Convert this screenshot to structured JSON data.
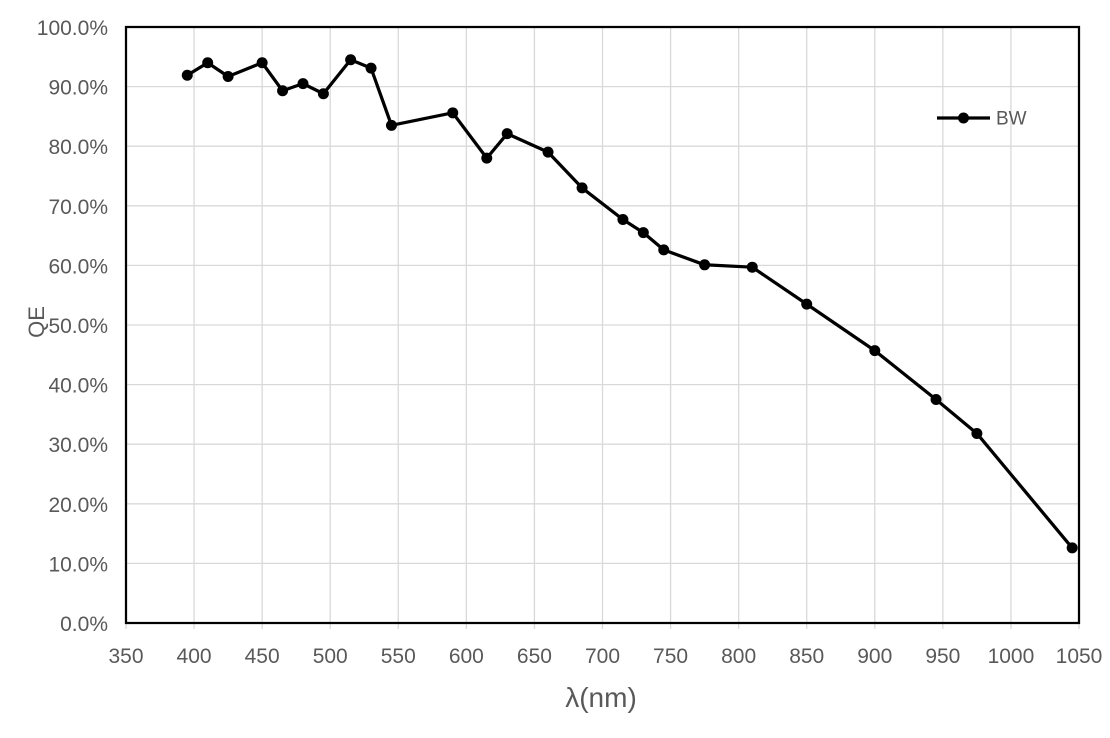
{
  "chart_data": {
    "type": "line",
    "title": "",
    "xlabel": "λ(nm)",
    "ylabel": "QE",
    "xlim": [
      350,
      1050
    ],
    "ylim": [
      0,
      100
    ],
    "x_ticks": [
      350,
      400,
      450,
      500,
      550,
      600,
      650,
      700,
      750,
      800,
      850,
      900,
      950,
      1000,
      1050
    ],
    "y_ticks": [
      {
        "value": 100,
        "label": "100.0%"
      },
      {
        "value": 90,
        "label": "90.0%"
      },
      {
        "value": 80,
        "label": "80.0%"
      },
      {
        "value": 70,
        "label": "70.0%"
      },
      {
        "value": 60,
        "label": "60.0%"
      },
      {
        "value": 50,
        "label": "50.0%"
      },
      {
        "value": 40,
        "label": "40.0%"
      },
      {
        "value": 30,
        "label": "30.0%"
      },
      {
        "value": 20,
        "label": "20.0%"
      },
      {
        "value": 10,
        "label": "10.0%"
      },
      {
        "value": 0,
        "label": "0.0%"
      }
    ],
    "grid": true,
    "legend": {
      "position": "top-right-inside",
      "entries": [
        {
          "label": "BW",
          "marker": "circle",
          "color": "#000000"
        }
      ]
    },
    "series": [
      {
        "name": "BW",
        "color": "#000000",
        "marker": "circle",
        "x": [
          395,
          410,
          425,
          450,
          465,
          480,
          495,
          515,
          530,
          545,
          590,
          615,
          630,
          660,
          685,
          715,
          730,
          745,
          775,
          810,
          850,
          900,
          945,
          975,
          1045
        ],
        "values": [
          91.9,
          94.0,
          91.7,
          94.0,
          89.3,
          90.5,
          88.8,
          94.5,
          93.1,
          83.5,
          85.6,
          78.0,
          82.1,
          79.0,
          73.0,
          67.7,
          65.5,
          62.6,
          60.1,
          59.7,
          53.5,
          45.7,
          37.5,
          31.8,
          12.6
        ]
      }
    ]
  },
  "colors": {
    "background": "#FFFFFF",
    "gridline": "#D9D9D9",
    "tick_mark": "#D9D9D9",
    "plot_border": "#000000",
    "axis_text": "#595959",
    "series_line": "#000000"
  }
}
